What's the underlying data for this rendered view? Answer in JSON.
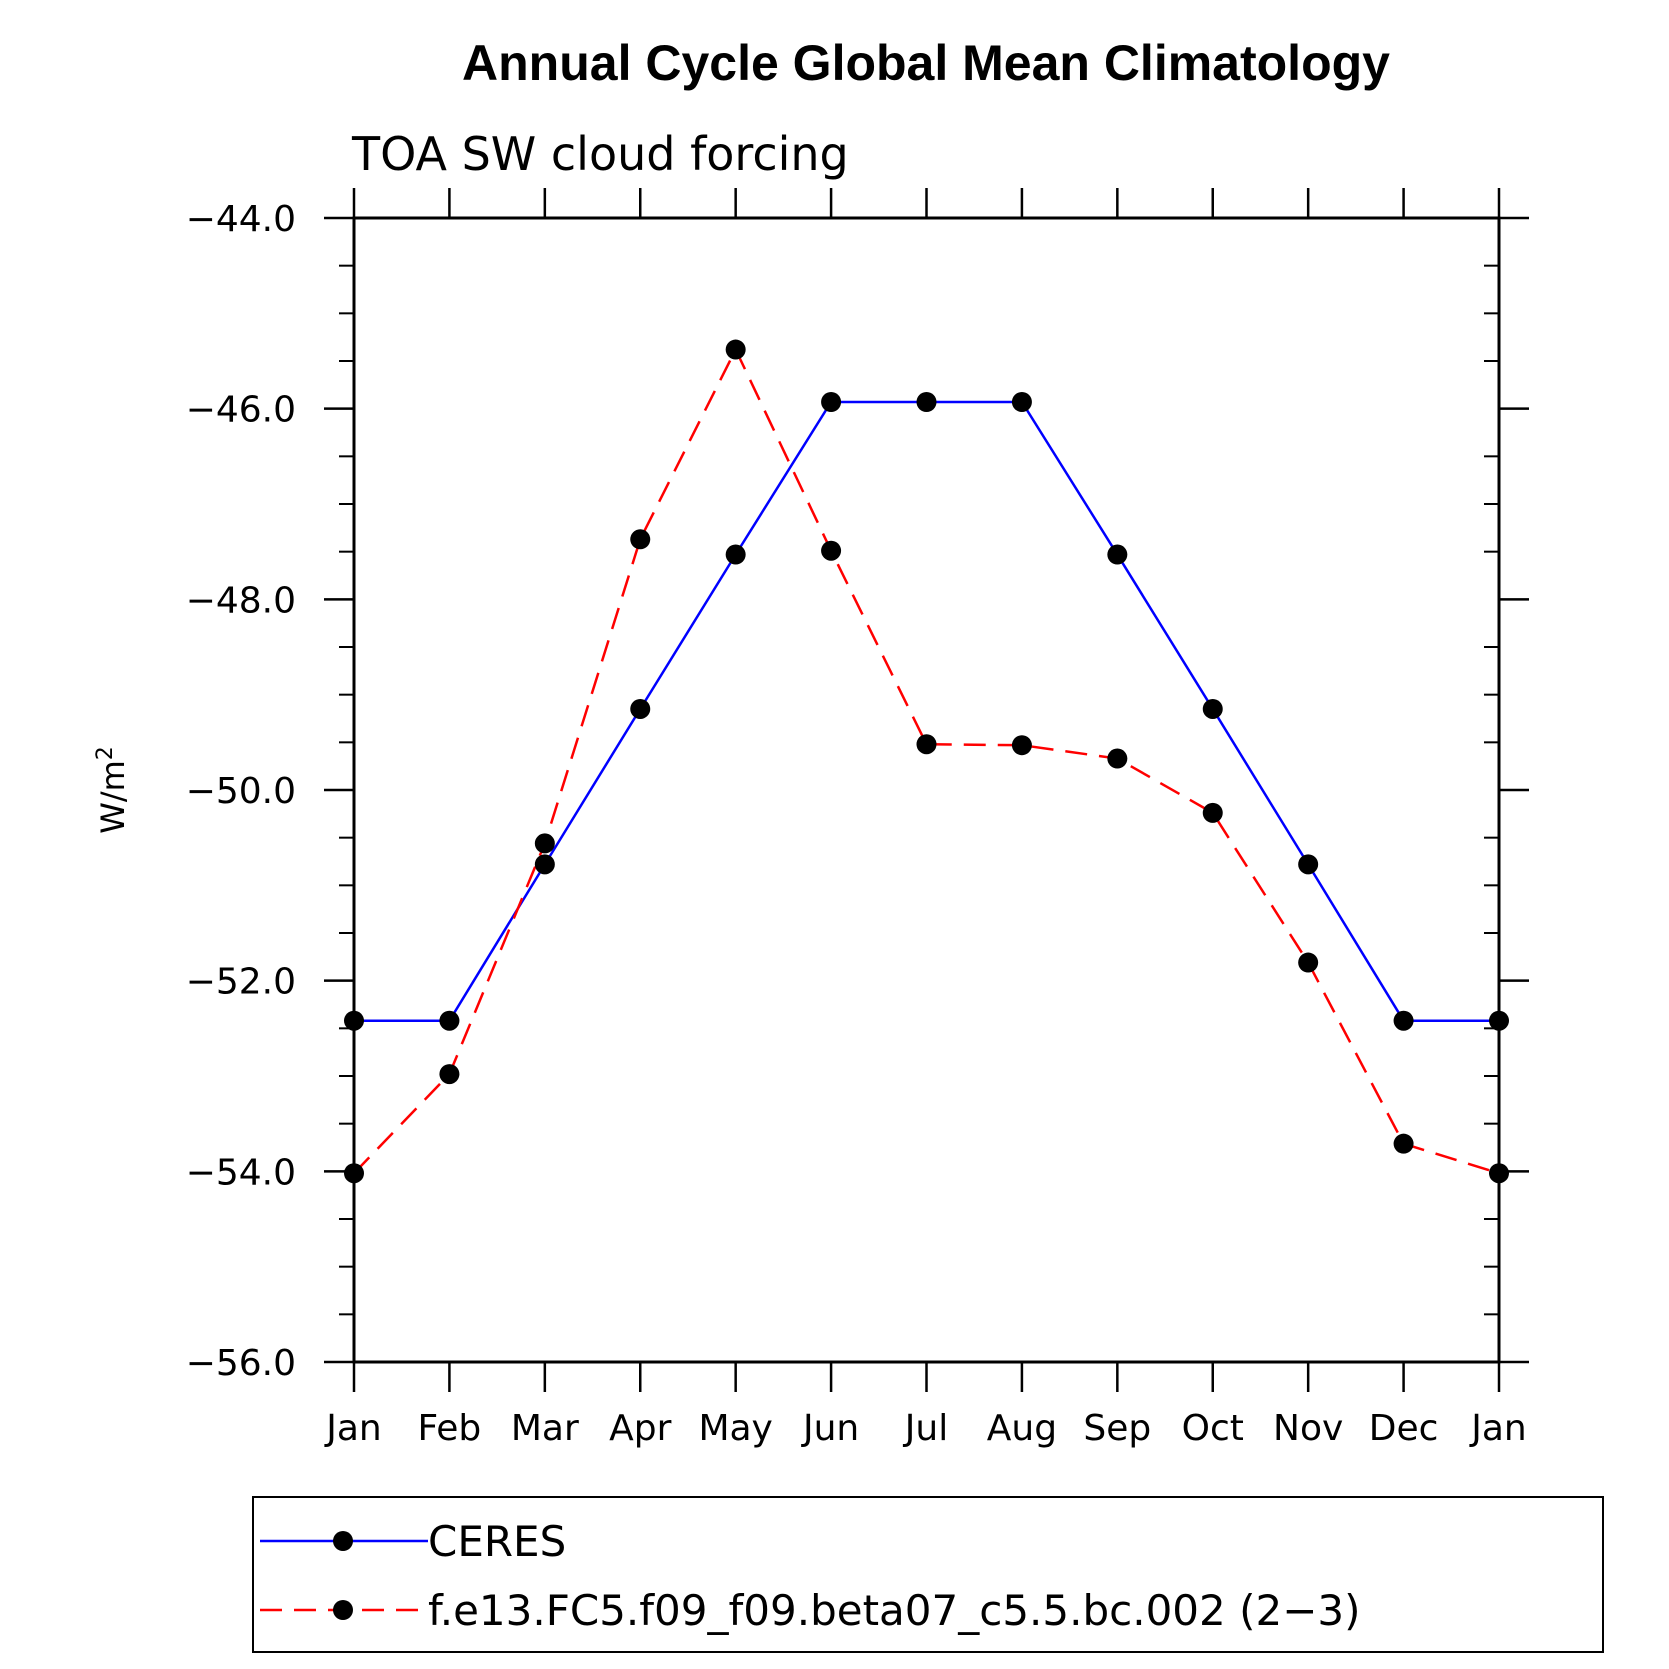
{
  "chart_data": {
    "type": "line",
    "title": "Annual Cycle Global Mean Climatology",
    "subtitle": "TOA SW cloud forcing",
    "xlabel": "",
    "ylabel": "W/m",
    "ylabel_superscript": "2",
    "categories": [
      "Jan",
      "Feb",
      "Mar",
      "Apr",
      "May",
      "Jun",
      "Jul",
      "Aug",
      "Sep",
      "Oct",
      "Nov",
      "Dec",
      "Jan"
    ],
    "ylim": [
      -56.0,
      -44.0
    ],
    "yticks": [
      -56.0,
      -54.0,
      -52.0,
      -50.0,
      -48.0,
      -46.0,
      -44.0
    ],
    "ytick_labels": [
      "−56.0",
      "−54.0",
      "−52.0",
      "−50.0",
      "−48.0",
      "−46.0",
      "−44.0"
    ],
    "series": [
      {
        "name": "CERES",
        "color": "#0000ff",
        "dash": "solid",
        "values": [
          -52.42,
          -52.42,
          -50.78,
          -49.15,
          -47.53,
          -45.93,
          -45.93,
          -45.93,
          -47.53,
          -49.15,
          -50.78,
          -52.42,
          -52.42
        ]
      },
      {
        "name": "f.e13.FC5.f09_f09.beta07_c5.5.bc.002 (2−3)",
        "color": "#ff0000",
        "dash": "dashed",
        "values": [
          -54.02,
          -52.98,
          -50.56,
          -47.37,
          -45.38,
          -47.49,
          -49.52,
          -49.53,
          -49.67,
          -50.24,
          -51.81,
          -53.71,
          -54.02
        ]
      }
    ],
    "marker_color": "#000000",
    "legend_position": "bottom"
  }
}
